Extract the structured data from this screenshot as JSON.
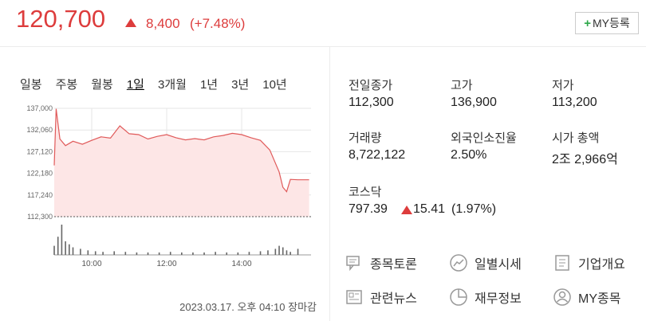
{
  "header": {
    "price": "120,700",
    "change": "8,400",
    "change_pct": "(+7.48%)",
    "button": "MY등록"
  },
  "tabs": [
    "일봉",
    "주봉",
    "월봉",
    "1일",
    "3개월",
    "1년",
    "3년",
    "10년"
  ],
  "stats": [
    {
      "label": "전일종가",
      "value": "112,300"
    },
    {
      "label": "고가",
      "value": "136,900"
    },
    {
      "label": "저가",
      "value": "113,200"
    },
    {
      "label": "거래량",
      "value": "8,722,122"
    },
    {
      "label": "외국인소진율",
      "value": "2.50%"
    },
    {
      "label": "시가 총액",
      "value": "2조 2,966억"
    }
  ],
  "index": {
    "label": "코스닥",
    "value": "797.39",
    "change": "15.41",
    "change_pct": "(1.97%)"
  },
  "links": [
    "종목토론",
    "일별시세",
    "기업개요",
    "관련뉴스",
    "재무정보",
    "MY종목"
  ],
  "timestamp": "2023.03.17. 오후 04:10 장마감",
  "chart_data": [
    {
      "type": "line",
      "color": "#e05a5a",
      "x": [
        9.0,
        9.05,
        9.15,
        9.3,
        9.5,
        9.75,
        10.0,
        10.25,
        10.5,
        10.75,
        11.0,
        11.25,
        11.5,
        11.75,
        12.0,
        12.25,
        12.5,
        12.75,
        13.0,
        13.25,
        13.5,
        13.75,
        14.0,
        14.25,
        14.5,
        14.75,
        15.0,
        15.1,
        15.2,
        15.3,
        15.5,
        15.8
      ],
      "values": [
        124000,
        136900,
        130000,
        128500,
        129500,
        128800,
        129700,
        130500,
        130200,
        133000,
        131200,
        131000,
        130000,
        130600,
        131000,
        130300,
        129800,
        130100,
        129800,
        130500,
        130800,
        131300,
        131000,
        130300,
        129700,
        127500,
        122500,
        119000,
        118000,
        120800,
        120700,
        120700
      ],
      "xlim": [
        9,
        15.85
      ],
      "xticks": [
        {
          "value": 10,
          "label": "10:00"
        },
        {
          "value": 12,
          "label": "12:00"
        },
        {
          "value": 14,
          "label": "14:00"
        }
      ],
      "ylim": [
        112300,
        137000
      ],
      "yticks": [
        {
          "value": 137000,
          "label": "137,000"
        },
        {
          "value": 132060,
          "label": "132,060"
        },
        {
          "value": 127120,
          "label": "127,120"
        },
        {
          "value": 122180,
          "label": "122,180"
        },
        {
          "value": 117240,
          "label": "117,240"
        },
        {
          "value": 112300,
          "label": "112,300"
        }
      ],
      "grid": true
    },
    {
      "type": "bar",
      "color": "#666666",
      "x": [
        9.0,
        9.1,
        9.2,
        9.3,
        9.4,
        9.5,
        9.7,
        9.9,
        10.1,
        10.3,
        10.6,
        10.9,
        11.2,
        11.5,
        11.8,
        12.1,
        12.4,
        12.7,
        13.0,
        13.3,
        13.6,
        13.9,
        14.2,
        14.5,
        14.7,
        14.9,
        15.0,
        15.1,
        15.2,
        15.3,
        15.5
      ],
      "values": [
        30,
        60,
        100,
        45,
        35,
        25,
        20,
        15,
        12,
        10,
        12,
        10,
        8,
        8,
        8,
        10,
        8,
        8,
        8,
        10,
        8,
        8,
        10,
        12,
        15,
        20,
        30,
        25,
        15,
        10,
        20
      ],
      "xlim": [
        9,
        15.85
      ],
      "ylim": [
        0,
        100
      ]
    }
  ]
}
